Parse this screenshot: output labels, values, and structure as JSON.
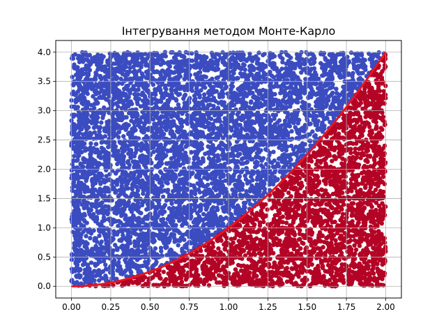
{
  "chart_data": {
    "type": "scatter",
    "title": "Інтегрування методом Монте-Карло",
    "xlabel": "",
    "ylabel": "",
    "xlim": [
      -0.1,
      2.1
    ],
    "ylim": [
      -0.2,
      4.2
    ],
    "x_ticks": [
      0.0,
      0.25,
      0.5,
      0.75,
      1.0,
      1.25,
      1.5,
      1.75,
      2.0
    ],
    "x_tick_labels": [
      "0.00",
      "0.25",
      "0.50",
      "0.75",
      "1.00",
      "1.25",
      "1.50",
      "1.75",
      "2.00"
    ],
    "y_ticks": [
      0.0,
      0.5,
      1.0,
      1.5,
      2.0,
      2.5,
      3.0,
      3.5,
      4.0
    ],
    "y_tick_labels": [
      "0.0",
      "0.5",
      "1.0",
      "1.5",
      "2.0",
      "2.5",
      "3.0",
      "3.5",
      "4.0"
    ],
    "grid": true,
    "legend": "none",
    "sampling_region": {
      "x": [
        0,
        2
      ],
      "y": [
        0,
        4
      ]
    },
    "curve": {
      "function": "y = x^2",
      "x": [
        0.0,
        0.25,
        0.5,
        0.75,
        1.0,
        1.25,
        1.5,
        1.75,
        2.0
      ],
      "y": [
        0.0,
        0.0625,
        0.25,
        0.5625,
        1.0,
        1.5625,
        2.25,
        3.0625,
        4.0
      ],
      "color": "#e8151f"
    },
    "series": [
      {
        "role": "points above curve (y > x^2)",
        "color": "#3b4cc0"
      },
      {
        "role": "points below curve (y <= x^2)",
        "color": "#b40426"
      }
    ]
  }
}
